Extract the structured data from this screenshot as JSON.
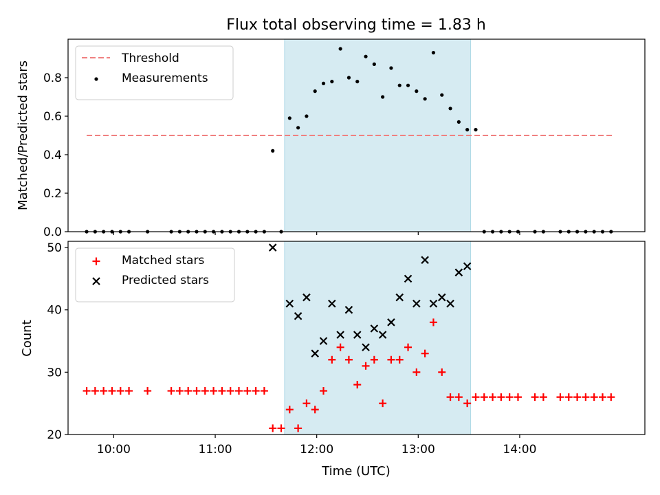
{
  "chart_data": {
    "title": "Flux total observing time = 1.83 h",
    "xlabel": "Time (UTC)",
    "x_tick_labels": [
      "10:00",
      "11:00",
      "12:00",
      "13:00",
      "14:00"
    ],
    "x_ticks": [
      "10:00",
      "11:00",
      "12:00",
      "13:00",
      "14:00"
    ],
    "xlim": [
      "09:33",
      "15:14"
    ],
    "shaded_span": {
      "start": "11:41",
      "end": "13:31",
      "color": "#add8e6"
    },
    "panels": [
      {
        "type": "scatter",
        "ylabel": "Matched/Predicted stars",
        "ylim": [
          0.0,
          1.0
        ],
        "y_ticks": [
          0.0,
          0.2,
          0.4,
          0.6,
          0.8
        ],
        "y_tick_labels": [
          "0.0",
          "0.2",
          "0.4",
          "0.6",
          "0.8"
        ],
        "legend_position": "top-left",
        "threshold": {
          "name": "Threshold",
          "value": 0.5,
          "x_range": [
            "09:44",
            "14:55"
          ],
          "color": "#f08080",
          "style": "dashed"
        },
        "series": [
          {
            "name": "Measurements",
            "marker": "dot",
            "color": "#000000",
            "x": [
              "09:44",
              "09:49",
              "09:54",
              "09:59",
              "10:04",
              "10:09",
              "10:20",
              "10:34",
              "10:39",
              "10:44",
              "10:49",
              "10:54",
              "10:59",
              "11:04",
              "11:09",
              "11:14",
              "11:19",
              "11:24",
              "11:29",
              "11:34",
              "11:39",
              "11:44",
              "11:49",
              "11:54",
              "11:59",
              "12:04",
              "12:09",
              "12:14",
              "12:19",
              "12:24",
              "12:29",
              "12:34",
              "12:39",
              "12:44",
              "12:49",
              "12:54",
              "12:59",
              "13:04",
              "13:09",
              "13:14",
              "13:19",
              "13:24",
              "13:29",
              "13:34",
              "13:39",
              "13:44",
              "13:49",
              "13:54",
              "13:59",
              "14:09",
              "14:14",
              "14:24",
              "14:29",
              "14:34",
              "14:39",
              "14:44",
              "14:49",
              "14:54"
            ],
            "y": [
              0.0,
              0.0,
              0.0,
              0.0,
              0.0,
              0.0,
              0.0,
              0.0,
              0.0,
              0.0,
              0.0,
              0.0,
              0.0,
              0.0,
              0.0,
              0.0,
              0.0,
              0.0,
              0.0,
              0.42,
              0.0,
              0.59,
              0.54,
              0.6,
              0.73,
              0.77,
              0.78,
              0.95,
              0.8,
              0.78,
              0.91,
              0.87,
              0.7,
              0.85,
              0.76,
              0.76,
              0.73,
              0.69,
              0.93,
              0.71,
              0.64,
              0.57,
              0.53,
              0.53,
              0.0,
              0.0,
              0.0,
              0.0,
              0.0,
              0.0,
              0.0,
              0.0,
              0.0,
              0.0,
              0.0,
              0.0,
              0.0,
              0.0
            ]
          }
        ]
      },
      {
        "type": "scatter",
        "ylabel": "Count",
        "ylim": [
          20,
          51
        ],
        "y_ticks": [
          20,
          30,
          40,
          50
        ],
        "y_tick_labels": [
          "20",
          "30",
          "40",
          "50"
        ],
        "legend_position": "top-left",
        "series": [
          {
            "name": "Matched stars",
            "marker": "plus",
            "color": "#ff0000",
            "x": [
              "09:44",
              "09:49",
              "09:54",
              "09:59",
              "10:04",
              "10:09",
              "10:20",
              "10:34",
              "10:39",
              "10:44",
              "10:49",
              "10:54",
              "10:59",
              "11:04",
              "11:09",
              "11:14",
              "11:19",
              "11:24",
              "11:29",
              "11:34",
              "11:39",
              "11:44",
              "11:49",
              "11:54",
              "11:59",
              "12:04",
              "12:09",
              "12:14",
              "12:19",
              "12:24",
              "12:29",
              "12:34",
              "12:39",
              "12:44",
              "12:49",
              "12:54",
              "12:59",
              "13:04",
              "13:09",
              "13:14",
              "13:19",
              "13:24",
              "13:29",
              "13:34",
              "13:39",
              "13:44",
              "13:49",
              "13:54",
              "13:59",
              "14:09",
              "14:14",
              "14:24",
              "14:29",
              "14:34",
              "14:39",
              "14:44",
              "14:49",
              "14:54"
            ],
            "y": [
              27,
              27,
              27,
              27,
              27,
              27,
              27,
              27,
              27,
              27,
              27,
              27,
              27,
              27,
              27,
              27,
              27,
              27,
              27,
              21,
              21,
              24,
              21,
              25,
              24,
              27,
              32,
              34,
              32,
              28,
              31,
              32,
              25,
              32,
              32,
              34,
              30,
              33,
              38,
              30,
              26,
              26,
              25,
              26,
              26,
              26,
              26,
              26,
              26,
              26,
              26,
              26,
              26,
              26,
              26,
              26,
              26,
              26
            ]
          },
          {
            "name": "Predicted stars",
            "marker": "x",
            "color": "#000000",
            "x": [
              "11:34",
              "11:44",
              "11:49",
              "11:54",
              "11:59",
              "12:04",
              "12:09",
              "12:14",
              "12:19",
              "12:24",
              "12:29",
              "12:34",
              "12:39",
              "12:44",
              "12:49",
              "12:54",
              "12:59",
              "13:04",
              "13:09",
              "13:14",
              "13:19",
              "13:24",
              "13:29"
            ],
            "y": [
              50,
              41,
              39,
              42,
              33,
              35,
              41,
              36,
              40,
              36,
              34,
              37,
              36,
              38,
              42,
              45,
              41,
              48,
              41,
              42,
              41,
              46,
              47
            ]
          }
        ]
      }
    ]
  }
}
